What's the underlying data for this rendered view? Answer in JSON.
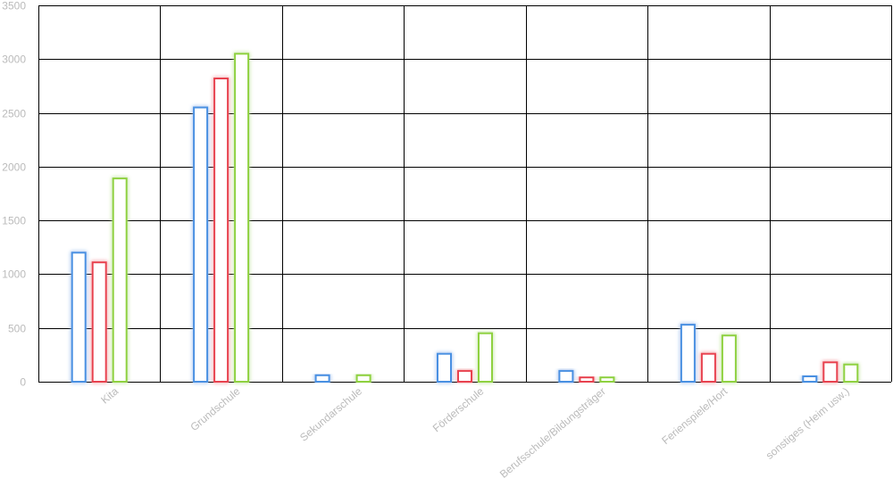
{
  "chart_data": {
    "type": "bar",
    "title": "",
    "xlabel": "",
    "ylabel": "",
    "ylim": [
      0,
      3500
    ],
    "yticks": [
      0,
      500,
      1000,
      1500,
      2000,
      2500,
      3000,
      3500
    ],
    "grid": true,
    "legend": "none",
    "categories": [
      "Kita",
      "Grundschule",
      "Sekundarschule",
      "Förderschule",
      "Berufsschule/Bildungsträger",
      "Ferienspiele/Hort",
      "sonstiges (Heim usw.)"
    ],
    "series": [
      {
        "color": "#4a90e2",
        "values": [
          1200,
          2550,
          60,
          260,
          100,
          530,
          50
        ]
      },
      {
        "color": "#e8424f",
        "values": [
          1110,
          2820,
          0,
          100,
          40,
          260,
          180
        ]
      },
      {
        "color": "#8fd13f",
        "values": [
          1890,
          3050,
          60,
          450,
          40,
          430,
          160
        ]
      }
    ]
  }
}
